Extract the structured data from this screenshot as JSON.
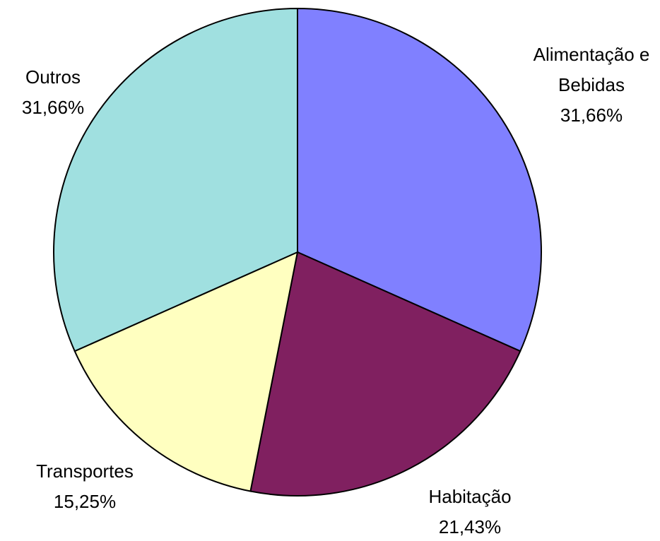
{
  "chart_data": {
    "type": "pie",
    "categories": [
      "Alimentação e Bebidas",
      "Habitação",
      "Transportes",
      "Outros"
    ],
    "values": [
      31.66,
      21.43,
      15.25,
      31.66
    ],
    "value_labels": [
      "31,66%",
      "21,43%",
      "15,25%",
      "31,66%"
    ],
    "colors": [
      "#8080ff",
      "#802060",
      "#ffffc0",
      "#a0e0e0"
    ]
  }
}
